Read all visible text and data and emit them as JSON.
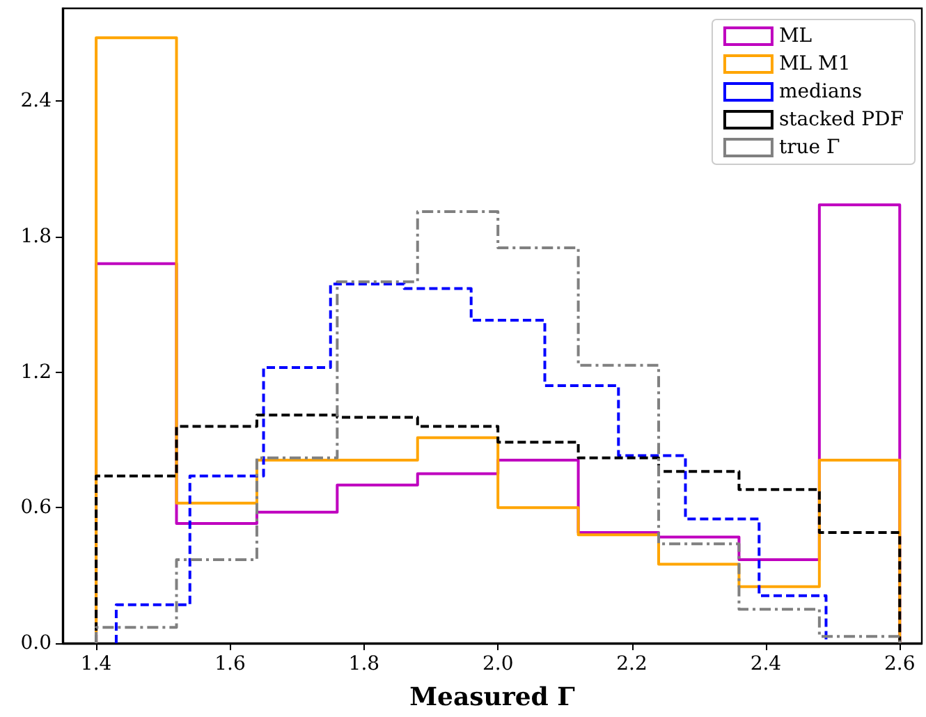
{
  "chart_data": {
    "type": "step",
    "xlabel": "Measured Γ",
    "xlim": [
      1.35,
      2.633
    ],
    "xticks": [
      1.4,
      1.6,
      1.8,
      {
        "value": 2,
        "label": "2.0"
      },
      2.2,
      2.4,
      2.6
    ],
    "ylim": [
      0,
      2.81
    ],
    "yticks": [
      {
        "value": 0,
        "label": "0.0"
      },
      0.6,
      1.2,
      1.8,
      2.4
    ],
    "grid": false,
    "legend": "top right",
    "marker": "none",
    "series": [
      {
        "name": "ML",
        "color": "#bf00bf",
        "line_style": "solid",
        "x": [
          1.4,
          1.4,
          1.52,
          1.64,
          1.76,
          1.88,
          2.0,
          2.12,
          2.24,
          2.36,
          2.48,
          2.6,
          2.6
        ],
        "values": [
          0,
          1.68,
          0.53,
          0.58,
          0.7,
          0.75,
          0.81,
          0.49,
          0.47,
          0.37,
          1.94,
          1.94,
          0
        ]
      },
      {
        "name": "ML M1",
        "color": "#ffa500",
        "line_style": "solid",
        "x": [
          1.4,
          1.4,
          1.52,
          1.64,
          1.76,
          1.88,
          2.0,
          2.12,
          2.24,
          2.36,
          2.48,
          2.6,
          2.6
        ],
        "values": [
          0,
          2.68,
          0.62,
          0.81,
          0.81,
          0.91,
          0.6,
          0.48,
          0.35,
          0.25,
          0.81,
          0.81,
          0
        ]
      },
      {
        "name": "medians",
        "color": "#0000ff",
        "line_style": "dashed",
        "x": [
          1.43,
          1.43,
          1.54,
          1.65,
          1.75,
          1.86,
          1.96,
          2.07,
          2.18,
          2.28,
          2.39,
          2.49,
          2.49
        ],
        "values": [
          0,
          0.17,
          0.74,
          1.22,
          1.59,
          1.57,
          1.43,
          1.14,
          0.83,
          0.55,
          0.21,
          0.21,
          0
        ]
      },
      {
        "name": "stacked PDF",
        "color": "#000000",
        "line_style": "dashed",
        "x": [
          1.4,
          1.4,
          1.52,
          1.64,
          1.76,
          1.88,
          2.0,
          2.12,
          2.24,
          2.36,
          2.48,
          2.6,
          2.6
        ],
        "values": [
          0,
          0.74,
          0.96,
          1.01,
          1.0,
          0.96,
          0.89,
          0.82,
          0.76,
          0.68,
          0.49,
          0.49,
          0
        ]
      },
      {
        "name": "true Γ",
        "color": "#808080",
        "line_style": "dashdot",
        "x": [
          1.4,
          1.4,
          1.52,
          1.64,
          1.76,
          1.88,
          2.0,
          2.12,
          2.24,
          2.36,
          2.48,
          2.6,
          2.6
        ],
        "values": [
          0,
          0.07,
          0.37,
          0.82,
          1.6,
          1.91,
          1.75,
          1.23,
          0.44,
          0.15,
          0.03,
          0.03,
          0
        ]
      }
    ]
  }
}
